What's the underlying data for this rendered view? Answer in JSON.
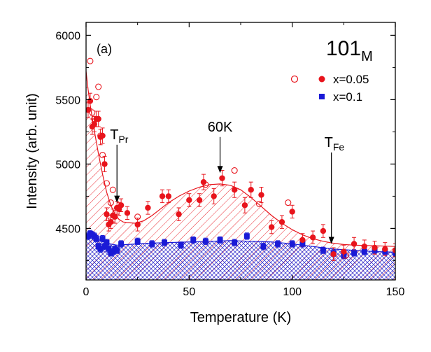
{
  "chart_data": {
    "type": "scatter",
    "panel_label": "(a)",
    "title_main": "101",
    "title_sub": "M",
    "xlabel": "Temperature (K)",
    "ylabel": "Intensity (arb. unit)",
    "xlim": [
      0,
      150
    ],
    "ylim": [
      4100,
      6100
    ],
    "x_ticks": [
      0,
      50,
      100,
      150
    ],
    "y_ticks": [
      4500,
      5000,
      5500,
      6000
    ],
    "grid": false,
    "legend_position": "top-right",
    "legend": [
      {
        "label": "x=0.05",
        "marker": "circle",
        "color": "#e8141c"
      },
      {
        "label": "x=0.1",
        "marker": "square",
        "color": "#1a1ad6"
      }
    ],
    "series": [
      {
        "name": "x=0.05",
        "color": "#e8141c",
        "marker": "filled-circle",
        "x": [
          1,
          2,
          3,
          4,
          5,
          6,
          7,
          8,
          9,
          10,
          11,
          12,
          13,
          14,
          15,
          16,
          17,
          20,
          25,
          30,
          37,
          40,
          45,
          50,
          55,
          57,
          62,
          66,
          72,
          77,
          80,
          85,
          90,
          95,
          100,
          105,
          110,
          115,
          120,
          125,
          130,
          135,
          140,
          145,
          150
        ],
        "y": [
          5420,
          5490,
          5290,
          5310,
          5350,
          5350,
          5210,
          5220,
          5000,
          4610,
          4530,
          4550,
          4600,
          4590,
          4660,
          4650,
          4680,
          4620,
          4530,
          4660,
          4750,
          4750,
          4610,
          4720,
          4720,
          4860,
          4750,
          4890,
          4800,
          4680,
          4800,
          4760,
          4510,
          4550,
          4630,
          4410,
          4430,
          4480,
          4300,
          4320,
          4380,
          4360,
          4350,
          4340,
          4330
        ],
        "errors": [
          60,
          60,
          60,
          60,
          60,
          60,
          60,
          60,
          60,
          50,
          50,
          50,
          50,
          50,
          50,
          50,
          50,
          50,
          50,
          50,
          50,
          50,
          50,
          50,
          50,
          60,
          60,
          60,
          60,
          60,
          60,
          60,
          50,
          50,
          50,
          50,
          50,
          50,
          50,
          50,
          50,
          50,
          50,
          50,
          50
        ]
      },
      {
        "name": "x=0.05 (open)",
        "color": "#e8141c",
        "marker": "open-circle",
        "x": [
          2,
          3,
          4,
          5,
          6,
          7,
          8,
          10,
          12,
          13,
          25,
          58,
          72,
          84,
          98,
          126
        ],
        "y": [
          5800,
          5400,
          5350,
          5520,
          5600,
          5220,
          5070,
          4850,
          4700,
          4800,
          4590,
          4840,
          4950,
          4690,
          4700,
          4290
        ]
      },
      {
        "name": "x=0.1",
        "color": "#1a1ad6",
        "marker": "filled-square",
        "x": [
          1,
          2,
          3,
          4,
          5,
          6,
          7,
          8,
          9,
          10,
          11,
          12,
          13,
          14,
          15,
          17,
          25,
          32,
          38,
          46,
          52,
          58,
          65,
          72,
          78,
          86,
          93,
          100,
          105,
          115,
          120,
          125,
          130,
          135,
          140,
          145,
          150
        ],
        "y": [
          4440,
          4460,
          4450,
          4440,
          4420,
          4360,
          4340,
          4420,
          4360,
          4390,
          4340,
          4310,
          4320,
          4340,
          4330,
          4380,
          4400,
          4380,
          4390,
          4370,
          4410,
          4400,
          4410,
          4390,
          4440,
          4360,
          4380,
          4380,
          4380,
          4330,
          4310,
          4290,
          4310,
          4320,
          4330,
          4320,
          4310
        ],
        "errors": [
          25,
          25,
          25,
          25,
          25,
          25,
          25,
          25,
          25,
          25,
          25,
          25,
          25,
          25,
          25,
          25,
          25,
          25,
          25,
          25,
          25,
          25,
          25,
          25,
          25,
          25,
          25,
          25,
          25,
          25,
          25,
          25,
          25,
          25,
          25,
          25,
          25
        ]
      },
      {
        "name": "x=0.05 fit",
        "color": "#e8141c",
        "marker": "line",
        "x": [
          0,
          1,
          2,
          3,
          4,
          6,
          8,
          10,
          12,
          14,
          16,
          18,
          20,
          24,
          28,
          32,
          36,
          40,
          45,
          50,
          55,
          60,
          65,
          70,
          75,
          80,
          85,
          90,
          95,
          100,
          105,
          110,
          115,
          120,
          125,
          130,
          140,
          150
        ],
        "y": [
          5720,
          5580,
          5460,
          5360,
          5260,
          5080,
          4920,
          4780,
          4680,
          4610,
          4570,
          4550,
          4545,
          4540,
          4560,
          4600,
          4650,
          4700,
          4750,
          4790,
          4820,
          4840,
          4845,
          4835,
          4800,
          4740,
          4670,
          4600,
          4540,
          4490,
          4450,
          4420,
          4400,
          4385,
          4375,
          4370,
          4365,
          4360
        ]
      },
      {
        "name": "x=0.1 fit",
        "color": "#1a1ad6",
        "marker": "line",
        "x": [
          0,
          5,
          10,
          15,
          20,
          30,
          40,
          50,
          60,
          70,
          80,
          90,
          100,
          110,
          120,
          130,
          140,
          150
        ],
        "y": [
          4455,
          4430,
          4385,
          4370,
          4375,
          4385,
          4390,
          4395,
          4400,
          4405,
          4400,
          4395,
          4380,
          4360,
          4340,
          4330,
          4320,
          4315
        ]
      }
    ],
    "annotations": [
      {
        "text": "T",
        "sub": "Pr",
        "x": 15,
        "y_from": 5150,
        "y_to": 4700
      },
      {
        "text": "60K",
        "sub": "",
        "x": 65,
        "y_from": 5210,
        "y_to": 4930
      },
      {
        "text": "T",
        "sub": "Fe",
        "x": 119,
        "y_from": 5090,
        "y_to": 4380
      }
    ]
  }
}
